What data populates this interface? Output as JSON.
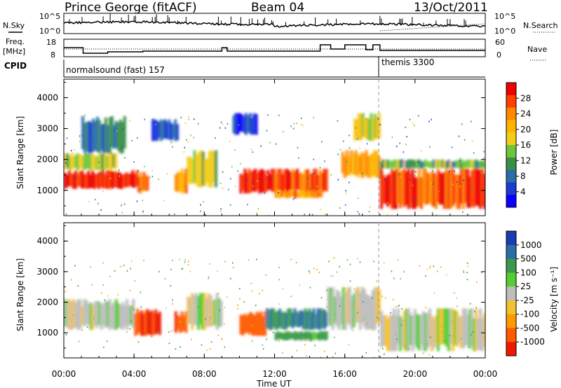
{
  "header": {
    "station": "Prince George (fitACF)",
    "beam": "Beam 04",
    "date": "13/Oct/2011"
  },
  "panels": {
    "nsky_label": "N.Sky",
    "nsearch_label": "N.Search",
    "nsky_ticks": [
      "10^5",
      "10^0"
    ],
    "nsearch_ticks": [
      "10^5",
      "10^0"
    ],
    "freq_label_1": "Freq.",
    "freq_label_2": "[MHz]",
    "freq_ticks": [
      "18",
      "8"
    ],
    "nave_label": "Nave",
    "nave_ticks": [
      "60",
      "0"
    ],
    "cpid_label": "CPID",
    "cpid_mode_1": "normalsound (fast) 157",
    "cpid_mode_2": "themis 3300"
  },
  "power_colorbar": {
    "label": "Power [dB]",
    "ticks": [
      "28",
      "24",
      "20",
      "16",
      "12",
      "8",
      "4"
    ],
    "colors": [
      "#ee0000",
      "#ff4000",
      "#ff8a00",
      "#ffb400",
      "#f2cc1a",
      "#6fc53a",
      "#3a8f48",
      "#2a6ea8",
      "#1a3cd0",
      "#0a00ff"
    ]
  },
  "velocity_colorbar": {
    "label": "Velocity [m s⁻¹]",
    "ticks": [
      "1000",
      "500",
      "100",
      "25",
      "-25",
      "-100",
      "-500",
      "-1000"
    ],
    "colors": [
      "#1a3cb0",
      "#2a6ea8",
      "#3a9a4a",
      "#55cc33",
      "#bdbdbd",
      "#f2c030",
      "#ff9a00",
      "#ff5a00",
      "#ee1a00"
    ]
  },
  "x_axis": {
    "label": "Time UT",
    "ticks": [
      "00:00",
      "04:00",
      "08:00",
      "12:00",
      "16:00",
      "20:00",
      "00:00"
    ]
  },
  "y_axis": {
    "label": "Slant Range [km]",
    "ticks": [
      "4000",
      "3000",
      "2000",
      "1000"
    ]
  },
  "chart_data": {
    "type": "heatmap",
    "title": "Prince George (fitACF) Beam 04 13/Oct/2011",
    "xlabel": "Time UT",
    "ylabel": "Slant Range [km]",
    "xlim": [
      0,
      24
    ],
    "ylim": [
      180,
      4600
    ],
    "panels": [
      {
        "quantity": "Power [dB]",
        "zlim": [
          0,
          30
        ],
        "blobs": [
          {
            "t0": 0.0,
            "t1": 4.2,
            "r0": 1050,
            "r1": 1650,
            "value": 28
          },
          {
            "t0": 0.0,
            "t1": 3.0,
            "r0": 1650,
            "r1": 2200,
            "value": 14
          },
          {
            "t0": 1.0,
            "t1": 3.5,
            "r0": 2200,
            "r1": 3400,
            "value": 8
          },
          {
            "t0": 4.2,
            "t1": 4.8,
            "r0": 900,
            "r1": 1600,
            "value": 24
          },
          {
            "t0": 5.0,
            "t1": 6.5,
            "r0": 2600,
            "r1": 3300,
            "value": 6
          },
          {
            "t0": 6.3,
            "t1": 7.0,
            "r0": 900,
            "r1": 1700,
            "value": 22
          },
          {
            "t0": 7.0,
            "t1": 8.7,
            "r0": 1100,
            "r1": 2300,
            "value": 14
          },
          {
            "t0": 9.6,
            "t1": 11.0,
            "r0": 2800,
            "r1": 3500,
            "value": 6
          },
          {
            "t0": 10.0,
            "t1": 15.0,
            "r0": 900,
            "r1": 1700,
            "value": 27
          },
          {
            "t0": 12.0,
            "t1": 14.7,
            "r0": 750,
            "r1": 1000,
            "value": 22
          },
          {
            "t0": 15.8,
            "t1": 18.0,
            "r0": 1400,
            "r1": 2300,
            "value": 20
          },
          {
            "t0": 16.5,
            "t1": 18.0,
            "r0": 2600,
            "r1": 3500,
            "value": 16
          },
          {
            "t0": 18.0,
            "t1": 24.0,
            "r0": 400,
            "r1": 1700,
            "value": 27
          },
          {
            "t0": 18.0,
            "t1": 24.0,
            "r0": 1700,
            "r1": 2000,
            "value": 12
          }
        ]
      },
      {
        "quantity": "Velocity [m s-1]",
        "zlim": [
          -1000,
          1000
        ],
        "blobs": [
          {
            "t0": 0.0,
            "t1": 4.0,
            "r0": 1100,
            "r1": 2100,
            "value": 0
          },
          {
            "t0": 4.0,
            "t1": 5.5,
            "r0": 900,
            "r1": 1800,
            "value": -700
          },
          {
            "t0": 6.3,
            "t1": 7.0,
            "r0": 1000,
            "r1": 1700,
            "value": -600
          },
          {
            "t0": 7.0,
            "t1": 9.0,
            "r0": 1100,
            "r1": 2300,
            "value": 0
          },
          {
            "t0": 10.0,
            "t1": 11.5,
            "r0": 900,
            "r1": 1700,
            "value": -500
          },
          {
            "t0": 11.5,
            "t1": 15.0,
            "r0": 1100,
            "r1": 1800,
            "value": 300
          },
          {
            "t0": 12.0,
            "t1": 15.0,
            "r0": 750,
            "r1": 1050,
            "value": 80
          },
          {
            "t0": 15.0,
            "t1": 18.0,
            "r0": 1100,
            "r1": 2500,
            "value": 0
          },
          {
            "t0": 18.0,
            "t1": 24.0,
            "r0": 400,
            "r1": 1800,
            "value": 0
          }
        ]
      }
    ],
    "mode_change_time": 18.0
  }
}
